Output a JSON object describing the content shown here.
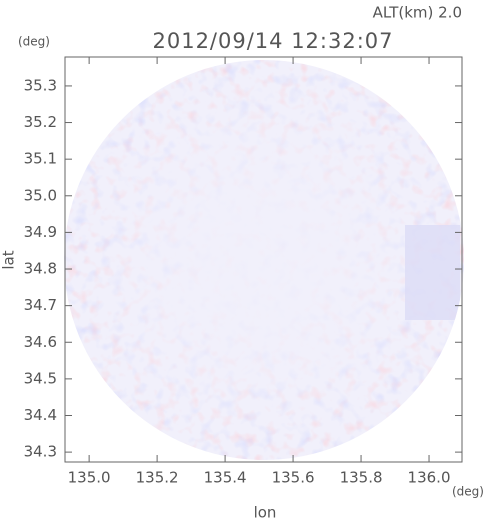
{
  "chart_data": {
    "type": "heatmap",
    "title": "2012/09/14 12:32:07",
    "annotation": "ALT(km)  2.0",
    "y_unit": "(deg)",
    "x_unit": "(deg)",
    "xlabel": "lon",
    "ylabel": "lat",
    "xlim": [
      134.929,
      136.097
    ],
    "ylim": [
      34.273,
      35.379
    ],
    "xticks": [
      {
        "value": 135.0,
        "label": "135.0"
      },
      135.2,
      135.4,
      135.6,
      135.8,
      {
        "value": 136.0,
        "label": "136.0"
      }
    ],
    "yticks": [
      34.3,
      34.4,
      34.5,
      34.6,
      34.7,
      34.8,
      34.9,
      {
        "value": 35.0,
        "label": "35.0"
      },
      35.1,
      35.2,
      35.3
    ]
  }
}
